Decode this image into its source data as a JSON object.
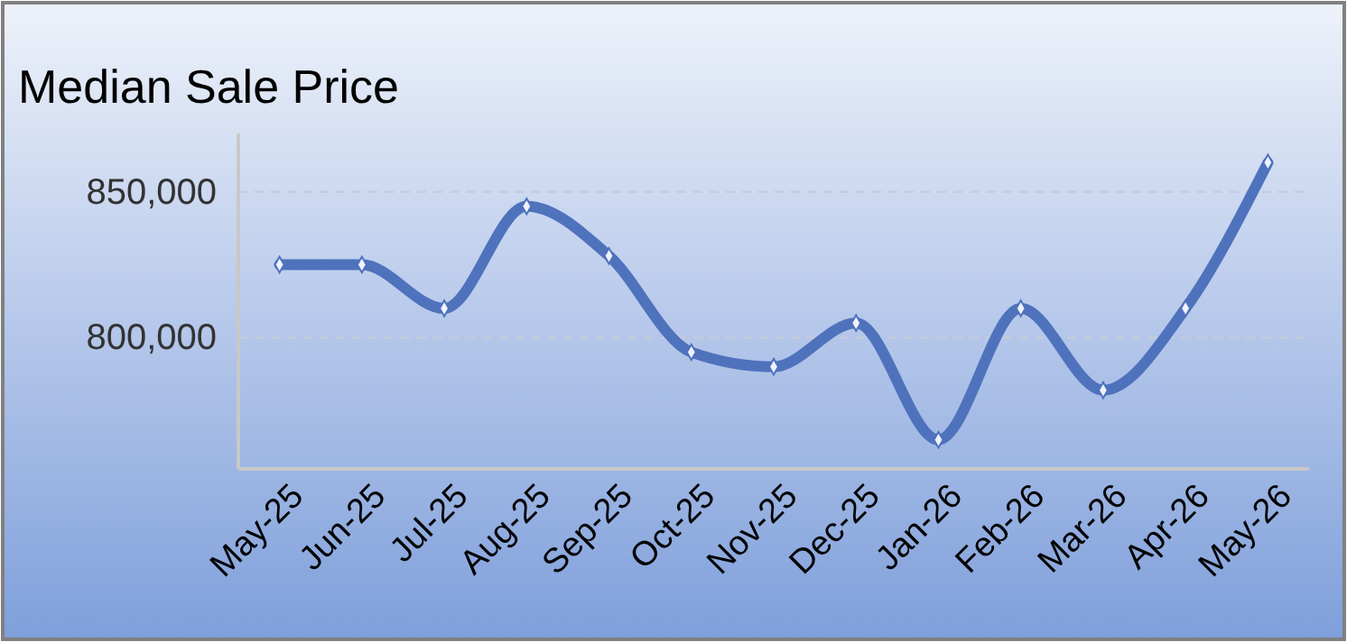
{
  "chart_data": {
    "type": "line",
    "title": "Median Sale Price",
    "categories": [
      "May-25",
      "Jun-25",
      "Jul-25",
      "Aug-25",
      "Sep-25",
      "Oct-25",
      "Nov-25",
      "Dec-25",
      "Jan-26",
      "Feb-26",
      "Mar-26",
      "Apr-26",
      "May-26"
    ],
    "series": [
      {
        "color": "#4f72bd",
        "values": [
          825000,
          825000,
          810000,
          845000,
          828000,
          795000,
          790000,
          805000,
          765000,
          810000,
          782000,
          810000,
          860000
        ]
      }
    ],
    "ylim": [
      755000,
      870000
    ],
    "yticks": [
      {
        "value": 800000,
        "label": "800,000"
      },
      {
        "value": 850000,
        "label": "850,000"
      }
    ],
    "grid": "y",
    "marker": "diamond",
    "line_style": "solid"
  }
}
